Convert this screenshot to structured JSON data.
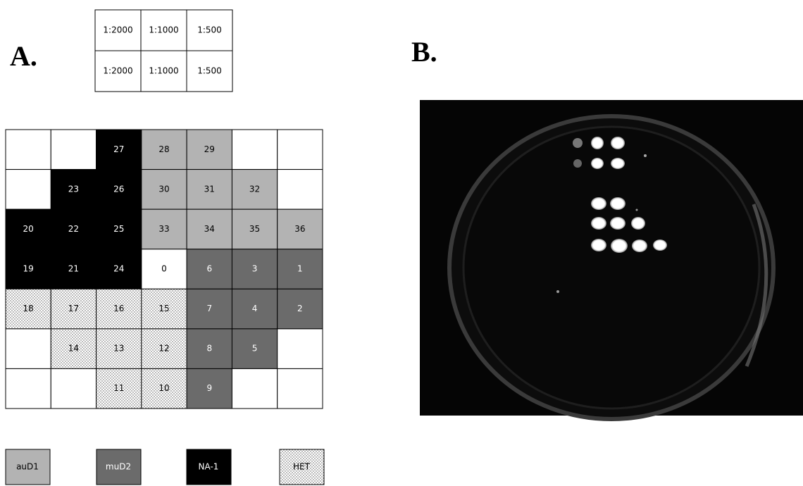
{
  "panel_a": {
    "label": "A.",
    "dilutions": [
      [
        "1:2000",
        "1:1000",
        "1:500"
      ],
      [
        "1:2000",
        "1:1000",
        "1:500"
      ]
    ],
    "grid": [
      [
        {
          "fill": "white"
        },
        {
          "fill": "white"
        },
        {
          "text": "27",
          "fill": "black"
        },
        {
          "text": "28",
          "fill": "light"
        },
        {
          "text": "29",
          "fill": "light"
        },
        {
          "fill": "white"
        },
        {
          "fill": "white"
        }
      ],
      [
        {
          "fill": "white"
        },
        {
          "text": "23",
          "fill": "black"
        },
        {
          "text": "26",
          "fill": "black"
        },
        {
          "text": "30",
          "fill": "light"
        },
        {
          "text": "31",
          "fill": "light"
        },
        {
          "text": "32",
          "fill": "light"
        },
        {
          "fill": "white"
        }
      ],
      [
        {
          "text": "20",
          "fill": "black"
        },
        {
          "text": "22",
          "fill": "black"
        },
        {
          "text": "25",
          "fill": "black"
        },
        {
          "text": "33",
          "fill": "light"
        },
        {
          "text": "34",
          "fill": "light"
        },
        {
          "text": "35",
          "fill": "light"
        },
        {
          "text": "36",
          "fill": "light"
        }
      ],
      [
        {
          "text": "19",
          "fill": "black"
        },
        {
          "text": "21",
          "fill": "black"
        },
        {
          "text": "24",
          "fill": "black"
        },
        {
          "text": "0",
          "fill": "white"
        },
        {
          "text": "6",
          "fill": "dark"
        },
        {
          "text": "3",
          "fill": "dark"
        },
        {
          "text": "1",
          "fill": "dark"
        }
      ],
      [
        {
          "text": "18",
          "fill": "dots"
        },
        {
          "text": "17",
          "fill": "dots"
        },
        {
          "text": "16",
          "fill": "dots"
        },
        {
          "text": "15",
          "fill": "dots"
        },
        {
          "text": "7",
          "fill": "dark"
        },
        {
          "text": "4",
          "fill": "dark"
        },
        {
          "text": "2",
          "fill": "dark"
        }
      ],
      [
        {
          "fill": "white"
        },
        {
          "text": "14",
          "fill": "dots"
        },
        {
          "text": "13",
          "fill": "dots"
        },
        {
          "text": "12",
          "fill": "dots"
        },
        {
          "text": "8",
          "fill": "dark"
        },
        {
          "text": "5",
          "fill": "dark"
        },
        {
          "fill": "white"
        }
      ],
      [
        {
          "fill": "white"
        },
        {
          "fill": "white"
        },
        {
          "text": "11",
          "fill": "dots"
        },
        {
          "text": "10",
          "fill": "dots"
        },
        {
          "text": "9",
          "fill": "dark"
        },
        {
          "fill": "white"
        },
        {
          "fill": "white"
        }
      ]
    ],
    "legend": [
      {
        "text": "auD1",
        "fill": "light"
      },
      {
        "text": "muD2",
        "fill": "dark"
      },
      {
        "text": "NA-1",
        "fill": "black"
      },
      {
        "text": "HET",
        "fill": "dots"
      }
    ]
  },
  "panel_b": {
    "label": "B."
  }
}
